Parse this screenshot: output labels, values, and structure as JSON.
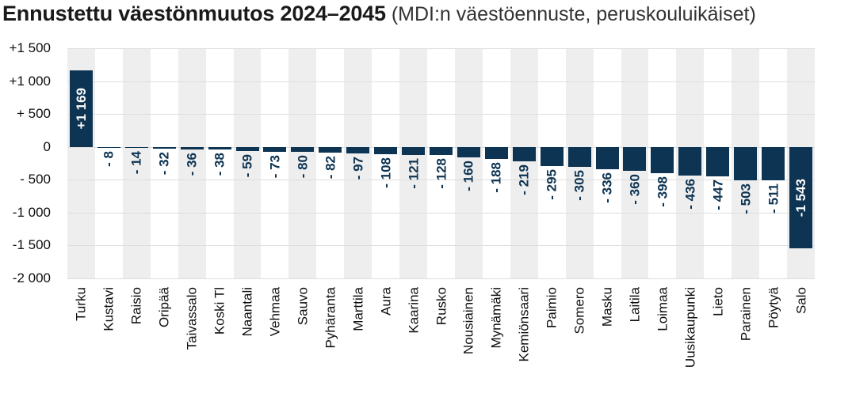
{
  "header": {
    "title": "Ennustettu väestönmuutos 2024–2045",
    "subtitle": " (MDI:n väestöennuste, peruskouluikäiset)"
  },
  "chart_data": {
    "type": "bar",
    "title": "Ennustettu väestönmuutos 2024–2045",
    "subtitle": "(MDI:n väestöennuste, peruskouluikäiset)",
    "orientation": "vertical-columns",
    "categories": [
      "Turku",
      "Kustavi",
      "Raisio",
      "Oripää",
      "Taivassalo",
      "Koski Tl",
      "Naantali",
      "Vehmaa",
      "Sauvo",
      "Pyhäranta",
      "Marttila",
      "Aura",
      "Kaarina",
      "Rusko",
      "Nousiainen",
      "Mynämäki",
      "Kemiönsaari",
      "Paimio",
      "Somero",
      "Masku",
      "Laitila",
      "Loimaa",
      "Uusikaupunki",
      "Lieto",
      "Parainen",
      "Pöytyä",
      "Salo"
    ],
    "values": [
      1169,
      -8,
      -14,
      -32,
      -36,
      -38,
      -59,
      -73,
      -80,
      -82,
      -97,
      -108,
      -121,
      -128,
      -160,
      -188,
      -219,
      -295,
      -305,
      -336,
      -360,
      -398,
      -436,
      -447,
      -503,
      -511,
      -1543
    ],
    "value_labels": [
      "+1 169",
      "- 8",
      "- 14",
      "- 32",
      "- 36",
      "- 38",
      "- 59",
      "- 73",
      "- 80",
      "- 82",
      "- 97",
      "- 108",
      "- 121",
      "- 128",
      "- 160",
      "- 188",
      "- 219",
      "- 295",
      "- 305",
      "- 336",
      "- 360",
      "- 398",
      "- 436",
      "- 447",
      "- 503",
      "- 511",
      "-1 543"
    ],
    "ylim": [
      -2000,
      1500
    ],
    "yticks": [
      1500,
      1000,
      500,
      0,
      -500,
      -1000,
      -1500,
      -2000
    ],
    "ytick_labels": [
      "+1 500",
      "+1 000",
      "+ 500",
      "0",
      "- 500",
      "-1 000",
      "-1 500",
      "-2 000"
    ],
    "xlabel": "",
    "ylabel": "",
    "grid": "horizontal-gridlines-every-500",
    "legend": "none",
    "colors": {
      "bar": "#0d3453",
      "value_label_outside": "#0d3453",
      "value_label_inside": "#ffffff",
      "column_stripe": "#eeeeee",
      "gridline": "#dedede",
      "axis_text": "#0f0f0f"
    },
    "inside_label_min_abs_value": 1000
  }
}
